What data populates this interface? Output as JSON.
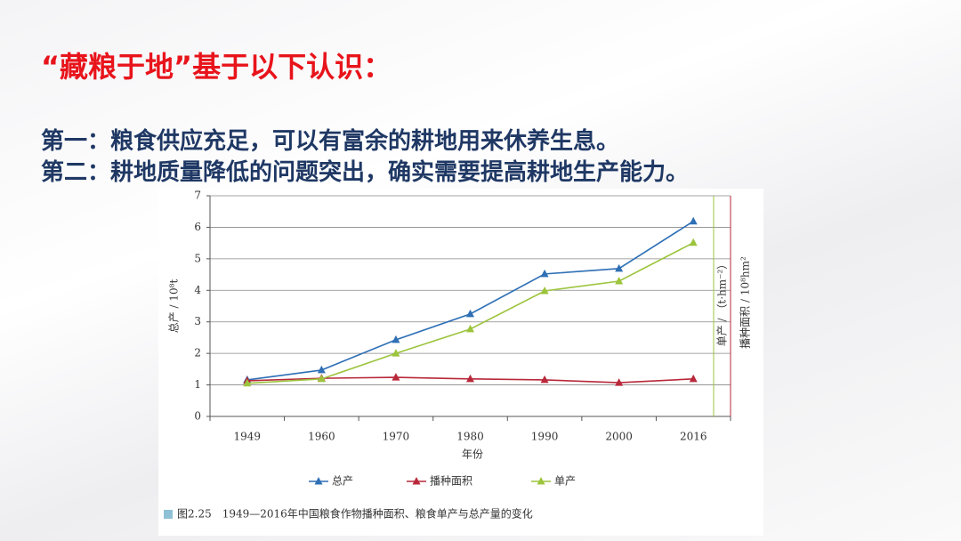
{
  "slide": {
    "title": "“藏粮于地”基于以下认识：",
    "points": [
      "第一：粮食供应充足，可以有富余的耕地用来休养生息。",
      "第二：耕地质量降低的问题突出，确实需要提高耕地生产能力。"
    ]
  },
  "chart_data": {
    "type": "line",
    "categories": [
      "1949",
      "1960",
      "1970",
      "1980",
      "1990",
      "2000",
      "2016"
    ],
    "series": [
      {
        "name": "总产",
        "color": "#2e6fb5",
        "values": [
          1.16,
          1.47,
          2.43,
          3.25,
          4.52,
          4.69,
          6.19
        ]
      },
      {
        "name": "播种面积",
        "color": "#b8283a",
        "values": [
          1.13,
          1.21,
          1.24,
          1.19,
          1.16,
          1.07,
          1.19
        ]
      },
      {
        "name": "单产",
        "color": "#9cc43c",
        "values": [
          1.05,
          1.19,
          2.0,
          2.77,
          3.98,
          4.29,
          5.51
        ]
      }
    ],
    "xlabel": "年份",
    "ylabel": "总产 / 10⁸t",
    "y2label": "单产 / （t·hm⁻²）",
    "y3label": "播种面积 / 10⁸hm²",
    "ylim": [
      0,
      7
    ],
    "yticks": [
      0,
      1,
      2,
      3,
      4,
      5,
      6,
      7
    ],
    "grid": true,
    "caption": "图2.25　1949—2016年中国粮食作物播种面积、粮食单产与总产量的变化"
  }
}
